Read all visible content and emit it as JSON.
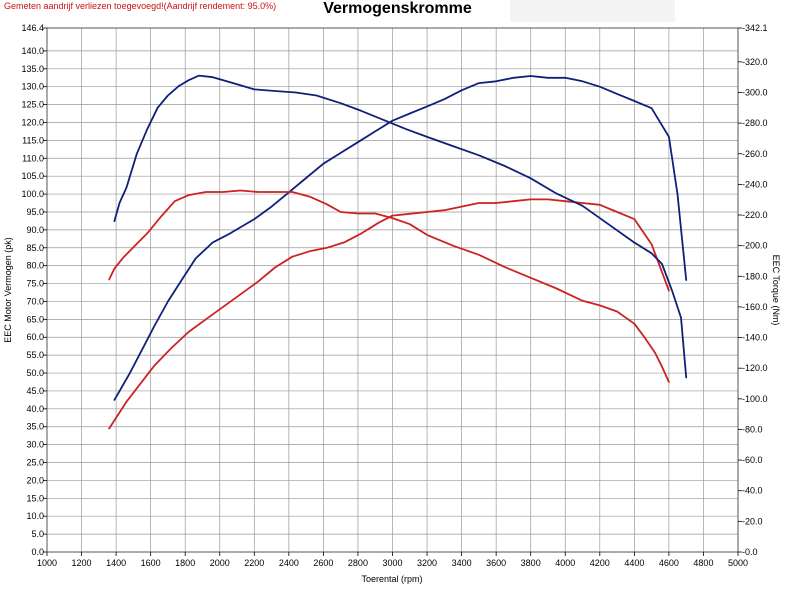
{
  "header": {
    "note": "Gemeten aandrijf verliezen toegevoegd!(Aandrijf rendement: 95.0%)",
    "title": "Vermogenskromme"
  },
  "chart_data": {
    "type": "line",
    "title": "Vermogenskromme",
    "xlabel": "Toerental (rpm)",
    "ylabel_left": "EEC Motor Vermogen (pk)",
    "ylabel_right": "EEC Torque (Nm)",
    "xlim": [
      1000,
      5000
    ],
    "ylim_left": [
      0,
      146.4
    ],
    "ylim_right": [
      0,
      342.1
    ],
    "grid": true,
    "x_ticks": [
      "1000",
      "1200",
      "1400",
      "1600",
      "1800",
      "2000",
      "2200",
      "2400",
      "2600",
      "2800",
      "3000",
      "3200",
      "3400",
      "3600",
      "3800",
      "4000",
      "4200",
      "4400",
      "4600",
      "4800",
      "5000"
    ],
    "y_left_ticks": [
      "0.0",
      "5.0",
      "10.0",
      "15.0",
      "20.0",
      "25.0",
      "30.0",
      "35.0",
      "40.0",
      "45.0",
      "50.0",
      "55.0",
      "60.0",
      "65.0",
      "70.0",
      "75.0",
      "80.0",
      "85.0",
      "90.0",
      "95.0",
      "100.0",
      "105.0",
      "110.0",
      "115.0",
      "120.0",
      "125.0",
      "130.0",
      "135.0",
      "140.0",
      "146.4"
    ],
    "y_right_ticks": [
      "0.0",
      "20.0",
      "40.0",
      "60.0",
      "80.0",
      "100.0",
      "120.0",
      "140.0",
      "160.0",
      "180.0",
      "200.0",
      "220.0",
      "240.0",
      "260.0",
      "280.0",
      "300.0",
      "320.0",
      "342.1"
    ],
    "series": [
      {
        "axis": "left",
        "color": "#10207a",
        "x": [
          1390,
          1420,
          1480,
          1550,
          1620,
          1700,
          1780,
          1860,
          1960,
          2060,
          2200,
          2300,
          2400,
          2500,
          2600,
          2700,
          2800,
          2900,
          3000,
          3100,
          3200,
          3300,
          3400,
          3500,
          3600,
          3700,
          3800,
          3900,
          4000,
          4100,
          4200,
          4300,
          4400,
          4500,
          4600,
          4650,
          4700
        ],
        "y": [
          42.5,
          45,
          50,
          56.5,
          63,
          70,
          76,
          82,
          86.5,
          89,
          93,
          96.5,
          100.5,
          104.5,
          108.5,
          111.5,
          114.5,
          117.5,
          120.5,
          122.5,
          124.5,
          126.5,
          129,
          131,
          131.5,
          132.5,
          133,
          132.5,
          132.5,
          131.5,
          130,
          128,
          126,
          124,
          116,
          100,
          76
        ]
      },
      {
        "axis": "left",
        "color": "#cc2222",
        "x": [
          1360,
          1400,
          1460,
          1540,
          1620,
          1720,
          1820,
          1920,
          2020,
          2120,
          2220,
          2320,
          2420,
          2520,
          2620,
          2720,
          2820,
          2920,
          3000,
          3100,
          3200,
          3300,
          3400,
          3500,
          3600,
          3700,
          3800,
          3900,
          4000,
          4100,
          4200,
          4300,
          4400,
          4500,
          4600
        ],
        "y": [
          34.5,
          37.5,
          42,
          47,
          52,
          57,
          61.5,
          65,
          68.5,
          72,
          75.5,
          79.5,
          82.5,
          84,
          85,
          86.5,
          89,
          92,
          94,
          94.5,
          95,
          95.5,
          96.5,
          97.5,
          97.5,
          98,
          98.5,
          98.5,
          98,
          97.5,
          97,
          95,
          93,
          86,
          73
        ]
      },
      {
        "axis": "right",
        "color": "#10207a",
        "x": [
          1390,
          1420,
          1460,
          1520,
          1580,
          1640,
          1700,
          1760,
          1820,
          1880,
          1960,
          2080,
          2200,
          2320,
          2440,
          2560,
          2700,
          2820,
          2950,
          3080,
          3200,
          3350,
          3500,
          3650,
          3800,
          3950,
          4100,
          4250,
          4400,
          4500,
          4560,
          4620,
          4670,
          4700
        ],
        "y": [
          216,
          228,
          238,
          260,
          276,
          290,
          298,
          304,
          308,
          311,
          310,
          306,
          302,
          301,
          300,
          298,
          293,
          288,
          282,
          276,
          271,
          265,
          259,
          252,
          244,
          234,
          226,
          214,
          202,
          195,
          188,
          170,
          153,
          114
        ]
      },
      {
        "axis": "right",
        "color": "#cc2222",
        "x": [
          1360,
          1390,
          1440,
          1500,
          1580,
          1660,
          1740,
          1820,
          1920,
          2020,
          2120,
          2220,
          2320,
          2420,
          2520,
          2620,
          2700,
          2800,
          2900,
          3000,
          3100,
          3200,
          3350,
          3500,
          3650,
          3800,
          3950,
          4100,
          4200,
          4300,
          4400,
          4460,
          4520,
          4560,
          4600
        ],
        "y": [
          178,
          185,
          192,
          199,
          208,
          219,
          229,
          233,
          235,
          235,
          236,
          235,
          235,
          235,
          232,
          227,
          222,
          221,
          221,
          218,
          214,
          207,
          200,
          194,
          186,
          179,
          172,
          164,
          161,
          157,
          149,
          140,
          130,
          121,
          111
        ]
      }
    ]
  }
}
